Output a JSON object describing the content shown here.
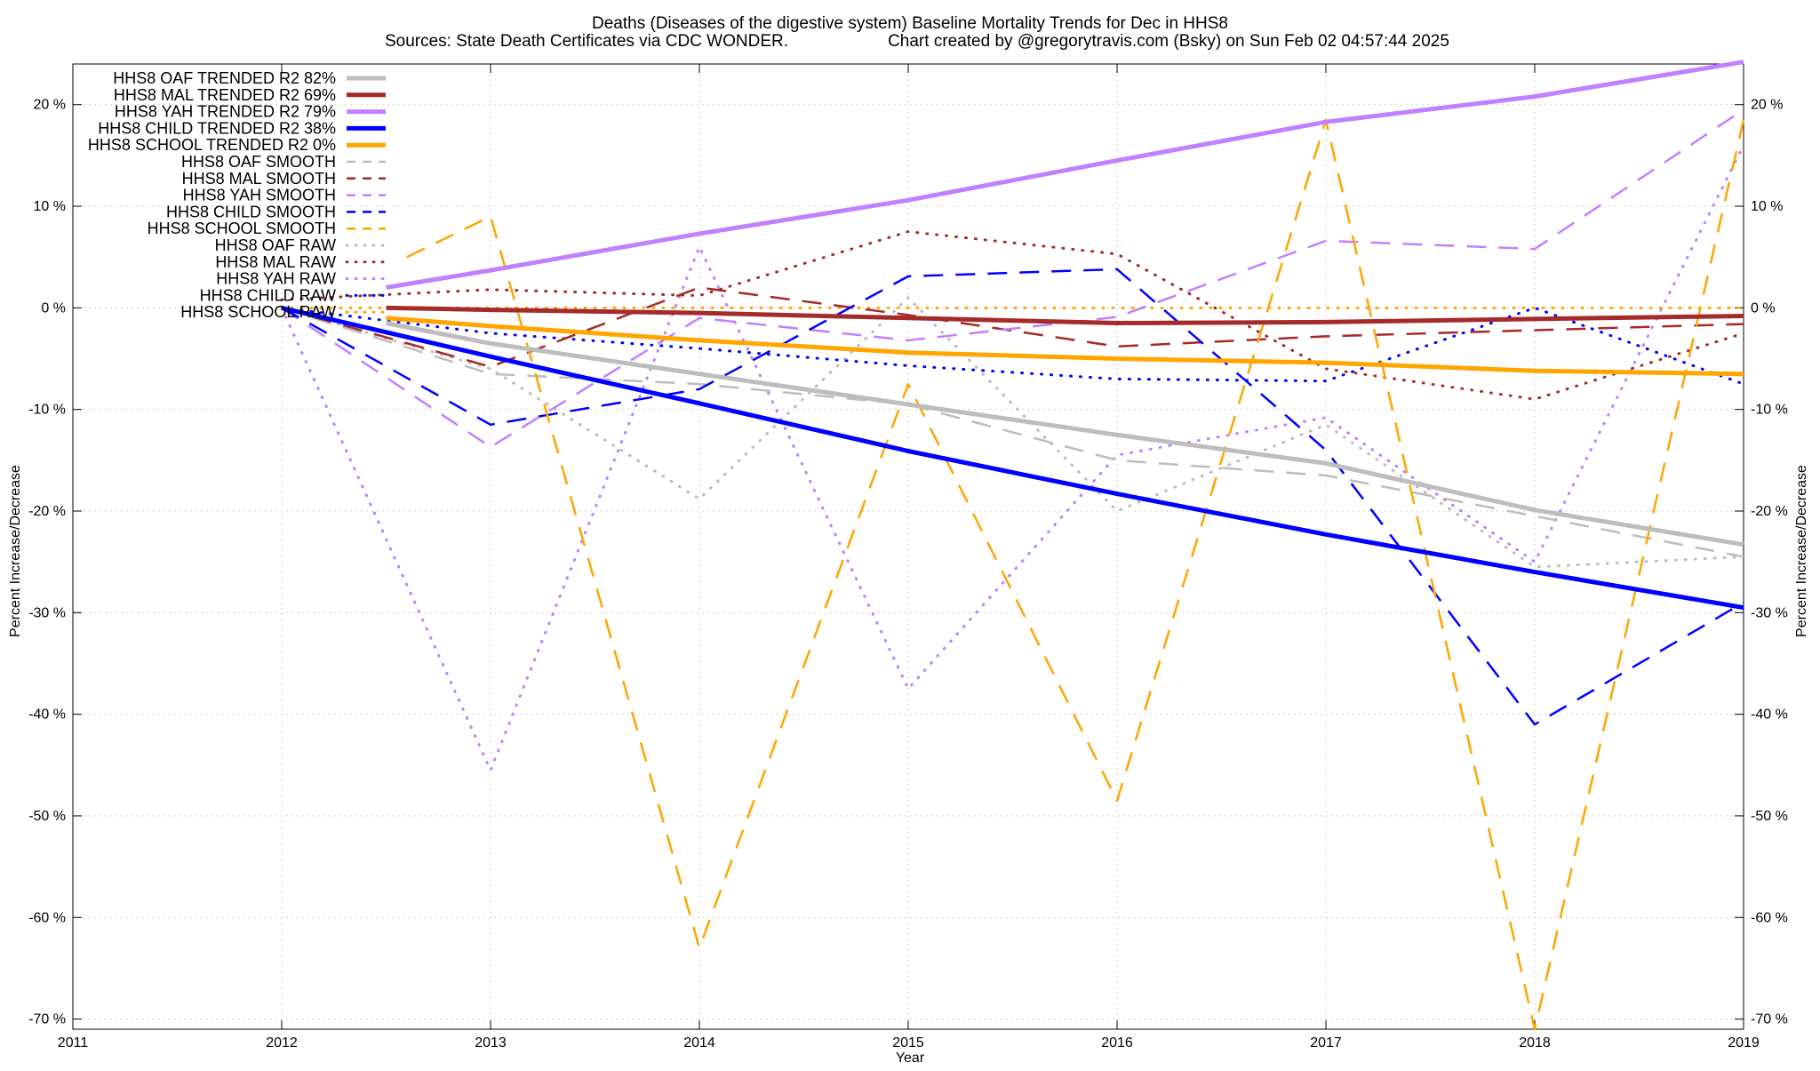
{
  "chart_data": {
    "type": "line",
    "title": "Deaths (Diseases of the digestive system)  Baseline Mortality Trends for Dec in HHS8",
    "subtitle_left": "Sources: State Death Certificates via CDC WONDER.",
    "subtitle_right": "Chart created by @gregorytravis.com (Bsky) on Sun Feb 02 04:57:44 2025",
    "xlabel": "Year",
    "ylabel_left": "Percent Increase/Decrease",
    "ylabel_right": "Percent Increase/Decrease",
    "xlim": [
      2011,
      2019
    ],
    "ylim": [
      -71,
      24
    ],
    "x_ticks": [
      "2011",
      "2012",
      "2013",
      "2014",
      "2015",
      "2016",
      "2017",
      "2018",
      "2019"
    ],
    "y_ticks": [
      20,
      10,
      0,
      -10,
      -20,
      -30,
      -40,
      -50,
      -60,
      -70
    ],
    "y_tick_labels": [
      "20 %",
      "10 %",
      "0 %",
      "-10 %",
      "-20 %",
      "-30 %",
      "-40 %",
      "-50 %",
      "-60 %",
      "-70 %"
    ],
    "grid": true,
    "legend_position": "top-left",
    "series": [
      {
        "name": "HHS8 OAF TRENDED R2  82%",
        "color": "#bdbdbd",
        "style": "trend",
        "points": [
          [
            2012.5,
            -1.5
          ],
          [
            2013,
            -3.5
          ],
          [
            2014,
            -6.5
          ],
          [
            2015,
            -9.5
          ],
          [
            2016,
            -12.5
          ],
          [
            2017,
            -15.3
          ],
          [
            2018,
            -19.9
          ],
          [
            2019,
            -23.3
          ]
        ]
      },
      {
        "name": "HHS8 MAL TRENDED R2  69%",
        "color": "#a52a2a",
        "style": "trend",
        "points": [
          [
            2012.5,
            0
          ],
          [
            2013,
            -0.2
          ],
          [
            2014,
            -0.5
          ],
          [
            2015,
            -1.0
          ],
          [
            2016,
            -1.5
          ],
          [
            2017,
            -1.4
          ],
          [
            2018,
            -1.1
          ],
          [
            2019,
            -0.8
          ]
        ]
      },
      {
        "name": "HHS8 YAH TRENDED R2  79%",
        "color": "#c080ff",
        "style": "trend",
        "points": [
          [
            2012.5,
            2
          ],
          [
            2013,
            3.7
          ],
          [
            2014,
            7.3
          ],
          [
            2015,
            10.6
          ],
          [
            2016,
            14.5
          ],
          [
            2017,
            18.3
          ],
          [
            2018,
            20.8
          ],
          [
            2019,
            24.2
          ]
        ]
      },
      {
        "name": "HHS8 CHILD TRENDED R2  38%",
        "color": "#0000ff",
        "style": "trend",
        "points": [
          [
            2012,
            0
          ],
          [
            2013,
            -4.8
          ],
          [
            2014,
            -9.4
          ],
          [
            2015,
            -14.1
          ],
          [
            2016,
            -18.3
          ],
          [
            2017,
            -22.3
          ],
          [
            2018,
            -26
          ],
          [
            2019,
            -29.5
          ]
        ]
      },
      {
        "name": "HHS8 SCHOOL TRENDED R2   0%",
        "color": "#ffa500",
        "style": "trend",
        "points": [
          [
            2012.5,
            -1
          ],
          [
            2013,
            -1.8
          ],
          [
            2014,
            -3.2
          ],
          [
            2015,
            -4.4
          ],
          [
            2016,
            -5
          ],
          [
            2017,
            -5.4
          ],
          [
            2018,
            -6.2
          ],
          [
            2019,
            -6.5
          ]
        ]
      },
      {
        "name": "HHS8 OAF SMOOTH",
        "color": "#bdbdbd",
        "style": "smooth",
        "points": [
          [
            2012,
            0
          ],
          [
            2013,
            -6.5
          ],
          [
            2014,
            -7.5
          ],
          [
            2015,
            -9.5
          ],
          [
            2016,
            -15
          ],
          [
            2017,
            -16.5
          ],
          [
            2018,
            -20.5
          ],
          [
            2019,
            -24.5
          ]
        ]
      },
      {
        "name": "HHS8 MAL SMOOTH",
        "color": "#a52a2a",
        "style": "smooth",
        "points": [
          [
            2012,
            0
          ],
          [
            2013,
            -5.8
          ],
          [
            2014,
            2
          ],
          [
            2015,
            -0.7
          ],
          [
            2016,
            -3.8
          ],
          [
            2017,
            -2.8
          ],
          [
            2018,
            -2.2
          ],
          [
            2019,
            -1.6
          ]
        ]
      },
      {
        "name": "HHS8 YAH SMOOTH",
        "color": "#c080ff",
        "style": "smooth",
        "points": [
          [
            2012,
            0
          ],
          [
            2013,
            -13.7
          ],
          [
            2014,
            -1
          ],
          [
            2015,
            -3.2
          ],
          [
            2016,
            -0.9
          ],
          [
            2017,
            6.6
          ],
          [
            2018,
            5.8
          ],
          [
            2019,
            19.5
          ]
        ]
      },
      {
        "name": "HHS8 CHILD SMOOTH",
        "color": "#0000ff",
        "style": "smooth",
        "points": [
          [
            2012,
            0
          ],
          [
            2013,
            -11.5
          ],
          [
            2014,
            -8
          ],
          [
            2015,
            3.1
          ],
          [
            2016,
            3.8
          ],
          [
            2017,
            -14
          ],
          [
            2018,
            -41
          ],
          [
            2019,
            -29
          ]
        ]
      },
      {
        "name": "HHS8 SCHOOL SMOOTH",
        "color": "#ffa500",
        "style": "smooth",
        "points": [
          [
            2012.6,
            5
          ],
          [
            2013,
            9
          ],
          [
            2014,
            -63
          ],
          [
            2015,
            -7.5
          ],
          [
            2016,
            -48.5
          ],
          [
            2017,
            18.5
          ],
          [
            2018,
            -71
          ],
          [
            2019,
            18.5
          ]
        ]
      },
      {
        "name": "HHS8 OAF RAW",
        "color": "#bdbdbd",
        "style": "raw",
        "points": [
          [
            2012,
            0
          ],
          [
            2013,
            -6
          ],
          [
            2014,
            -18.8
          ],
          [
            2015,
            1
          ],
          [
            2016,
            -20
          ],
          [
            2017,
            -11.5
          ],
          [
            2018,
            -25.5
          ],
          [
            2019,
            -24.5
          ]
        ]
      },
      {
        "name": "HHS8 MAL RAW",
        "color": "#a52a2a",
        "style": "raw",
        "points": [
          [
            2012,
            0.8
          ],
          [
            2013,
            1.8
          ],
          [
            2014,
            1.2
          ],
          [
            2015,
            7.5
          ],
          [
            2016,
            5.3
          ],
          [
            2017,
            -6
          ],
          [
            2018,
            -9
          ],
          [
            2019,
            -2.5
          ]
        ]
      },
      {
        "name": "HHS8 YAH RAW",
        "color": "#c080ff",
        "style": "raw",
        "points": [
          [
            2012,
            0
          ],
          [
            2013,
            -45.5
          ],
          [
            2014,
            6
          ],
          [
            2015,
            -37.5
          ],
          [
            2016,
            -14.5
          ],
          [
            2017,
            -10.8
          ],
          [
            2018,
            -25
          ],
          [
            2019,
            16
          ]
        ]
      },
      {
        "name": "HHS8 CHILD RAW",
        "color": "#0000ff",
        "style": "raw",
        "points": [
          [
            2012,
            0
          ],
          [
            2013,
            -2.5
          ],
          [
            2014,
            -4
          ],
          [
            2015,
            -5.7
          ],
          [
            2016,
            -7
          ],
          [
            2017,
            -7.2
          ],
          [
            2018,
            0
          ],
          [
            2019,
            -7.5
          ]
        ]
      },
      {
        "name": "HHS8 SCHOOL RAW",
        "color": "#ffa500",
        "style": "raw",
        "points": [
          [
            2012,
            0
          ],
          [
            2013,
            0
          ],
          [
            2014,
            0
          ],
          [
            2015,
            0
          ],
          [
            2016,
            0
          ],
          [
            2017,
            0
          ],
          [
            2018,
            0
          ],
          [
            2019,
            0
          ]
        ]
      }
    ]
  }
}
